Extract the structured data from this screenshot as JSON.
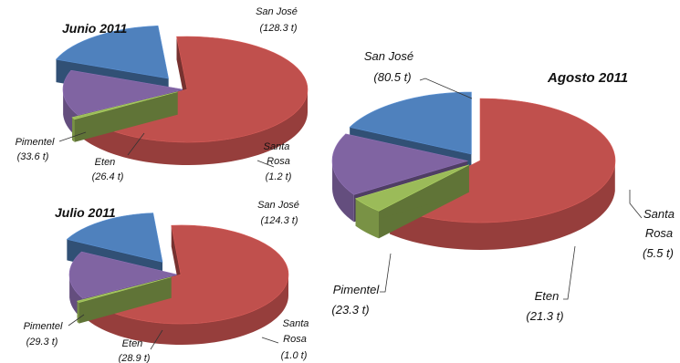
{
  "chart_data": [
    {
      "type": "pie",
      "title": "Junio 2011",
      "unit": "t",
      "slices": [
        {
          "name": "San José",
          "value": 128.3,
          "label": "(128.3  t)",
          "color": "#c0504d"
        },
        {
          "name": "Santa Rosa",
          "value": 1.2,
          "label": "(1.2  t)",
          "color": "#9bbb59"
        },
        {
          "name": "Eten",
          "value": 26.4,
          "label": "(26.4  t)",
          "color": "#8064a2"
        },
        {
          "name": "Pimentel",
          "value": 33.6,
          "label": "(33.6  t)",
          "color": "#4f81bd"
        }
      ]
    },
    {
      "type": "pie",
      "title": "Julio 2011",
      "unit": "t",
      "slices": [
        {
          "name": "San José",
          "value": 124.3,
          "label": "(124.3  t)",
          "color": "#c0504d"
        },
        {
          "name": "Santa Rosa",
          "value": 1.0,
          "label": "(1.0  t)",
          "color": "#9bbb59"
        },
        {
          "name": "Eten",
          "value": 28.9,
          "label": "(28.9  t)",
          "color": "#8064a2"
        },
        {
          "name": "Pimentel",
          "value": 29.3,
          "label": "(29.3  t)",
          "color": "#4f81bd"
        }
      ]
    },
    {
      "type": "pie",
      "title": "Agosto 2011",
      "unit": "t",
      "slices": [
        {
          "name": "San José",
          "value": 80.5,
          "label": "(80.5  t)",
          "color": "#c0504d"
        },
        {
          "name": "Santa Rosa",
          "value": 5.5,
          "label": "(5.5  t)",
          "color": "#9bbb59"
        },
        {
          "name": "Eten",
          "value": 21.3,
          "label": "(21.3  t)",
          "color": "#8064a2"
        },
        {
          "name": "Pimentel",
          "value": 23.3,
          "label": "(23.3  t)",
          "color": "#4f81bd"
        }
      ]
    }
  ]
}
